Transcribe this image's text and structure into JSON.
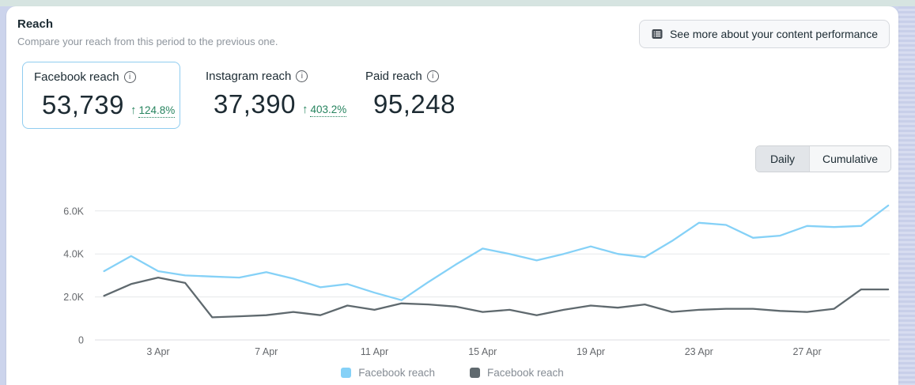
{
  "header": {
    "title": "Reach",
    "subtitle": "Compare your reach from this period to the previous one.",
    "action_button": "See more about your content performance"
  },
  "metrics": {
    "positive_color": "#27845f",
    "selected_border_color": "#90cdf0",
    "items": [
      {
        "label": "Facebook reach",
        "value": "53,739",
        "delta_arrow": "↑",
        "delta": "124.8%",
        "selected": true
      },
      {
        "label": "Instagram reach",
        "value": "37,390",
        "delta_arrow": "↑",
        "delta": "403.2%",
        "selected": false
      },
      {
        "label": "Paid reach",
        "value": "95,248",
        "delta_arrow": "",
        "delta": "",
        "selected": false
      }
    ]
  },
  "toggle": {
    "options": [
      {
        "label": "Daily",
        "selected": true
      },
      {
        "label": "Cumulative",
        "selected": false
      }
    ]
  },
  "chart_data": {
    "type": "line",
    "title": "",
    "xlabel": "",
    "ylabel": "",
    "grid": "horizontal",
    "legend_position": "bottom",
    "ylim": [
      0,
      6400
    ],
    "y_ticks": [
      0,
      2000,
      4000,
      6000
    ],
    "y_tick_labels": [
      "0",
      "2.0K",
      "4.0K",
      "6.0K"
    ],
    "x_tick_labels": [
      "3 Apr",
      "7 Apr",
      "11 Apr",
      "15 Apr",
      "19 Apr",
      "23 Apr",
      "27 Apr"
    ],
    "x": [
      "1 Apr",
      "2 Apr",
      "3 Apr",
      "4 Apr",
      "5 Apr",
      "6 Apr",
      "7 Apr",
      "8 Apr",
      "9 Apr",
      "10 Apr",
      "11 Apr",
      "12 Apr",
      "13 Apr",
      "14 Apr",
      "15 Apr",
      "16 Apr",
      "17 Apr",
      "18 Apr",
      "19 Apr",
      "20 Apr",
      "21 Apr",
      "22 Apr",
      "23 Apr",
      "24 Apr",
      "25 Apr",
      "26 Apr",
      "27 Apr",
      "28 Apr",
      "29 Apr",
      "30 Apr"
    ],
    "series": [
      {
        "name": "Facebook reach",
        "color": "#85d1f7",
        "values": [
          3200,
          3900,
          3200,
          3000,
          2950,
          2900,
          3150,
          2850,
          2450,
          2600,
          2200,
          1850,
          2700,
          3500,
          4250,
          4000,
          3700,
          4000,
          4350,
          4000,
          3850,
          4600,
          5450,
          5350,
          4750,
          4850,
          5300,
          5250,
          5300,
          6250
        ]
      },
      {
        "name": "Facebook reach",
        "color": "#5f696e",
        "values": [
          2050,
          2600,
          2900,
          2650,
          1050,
          1100,
          1150,
          1300,
          1150,
          1600,
          1400,
          1700,
          1650,
          1550,
          1300,
          1400,
          1150,
          1400,
          1600,
          1500,
          1650,
          1300,
          1400,
          1450,
          1450,
          1350,
          1300,
          1450,
          2350,
          2350
        ]
      }
    ],
    "legend": [
      {
        "label": "Facebook reach",
        "color": "#85d1f7"
      },
      {
        "label": "Facebook reach",
        "color": "#5f696e"
      }
    ]
  }
}
